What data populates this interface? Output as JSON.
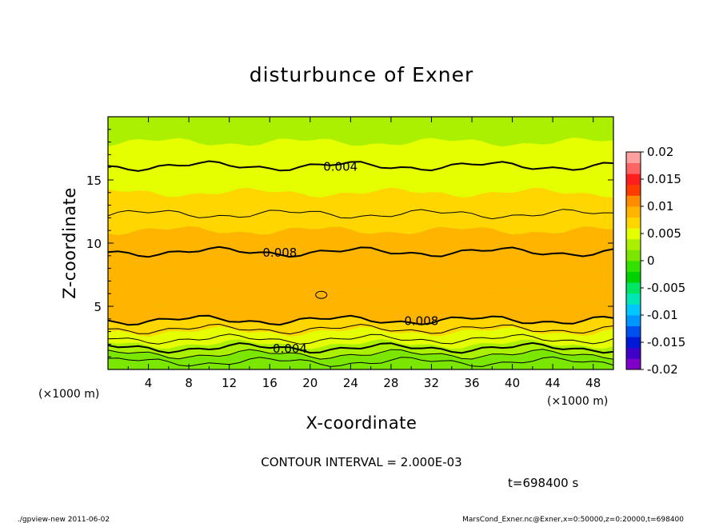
{
  "chart_data": {
    "type": "heatmap",
    "title": "disturbunce of Exner",
    "xlabel": "X-coordinate",
    "ylabel": "Z-coordinate",
    "x_unit_left": "(×1000 m)",
    "x_unit_right": "(×1000 m)",
    "x_ticks": [
      "4",
      "8",
      "12",
      "16",
      "20",
      "24",
      "28",
      "32",
      "36",
      "40",
      "44",
      "48"
    ],
    "y_ticks": [
      "5",
      "10",
      "15"
    ],
    "xlim": [
      0,
      50
    ],
    "ylim": [
      0,
      20
    ],
    "colorbar": {
      "ticks": [
        "0.02",
        "0.015",
        "0.01",
        "0.005",
        "0",
        "-0.005",
        "-0.01",
        "-0.015",
        "-0.02"
      ],
      "levels": [
        -0.02,
        0.02
      ],
      "colors": [
        "#7f00c8",
        "#3f00c8",
        "#0019d6",
        "#0050f0",
        "#0096ff",
        "#00c8ff",
        "#00e6b4",
        "#00e664",
        "#00d200",
        "#32e100",
        "#7be600",
        "#aaf000",
        "#e6ff00",
        "#ffd600",
        "#ffb400",
        "#ff8c00",
        "#ff3c00",
        "#ff1e1e",
        "#ff6464",
        "#ffa0a0"
      ]
    },
    "contour_interval": "CONTOUR INTERVAL = 2.000E-03",
    "contour_labels": [
      {
        "text": "0.004",
        "x": 23,
        "z": 16.1
      },
      {
        "text": "0.008",
        "x": 17,
        "z": 9.3
      },
      {
        "text": "0.008",
        "x": 31,
        "z": 3.9
      },
      {
        "text": "0.004",
        "x": 18,
        "z": 1.7
      }
    ],
    "bands": [
      {
        "z": 0.0,
        "value": 0.0001
      },
      {
        "z": 0.6,
        "value": 0.001
      },
      {
        "z": 1.2,
        "value": 0.0025
      },
      {
        "z": 2.0,
        "value": 0.004
      },
      {
        "z": 3.0,
        "value": 0.0065
      },
      {
        "z": 3.9,
        "value": 0.008
      },
      {
        "z": 5.0,
        "value": 0.0092
      },
      {
        "z": 6.5,
        "value": 0.0097
      },
      {
        "z": 8.2,
        "value": 0.0088
      },
      {
        "z": 9.3,
        "value": 0.008
      },
      {
        "z": 11.0,
        "value": 0.0068
      },
      {
        "z": 12.3,
        "value": 0.006
      },
      {
        "z": 14.0,
        "value": 0.005
      },
      {
        "z": 16.1,
        "value": 0.004
      },
      {
        "z": 18.0,
        "value": 0.0032
      },
      {
        "z": 20.0,
        "value": 0.0026
      }
    ],
    "time": "t=698400 s",
    "footer_left": "./gpview-new  2011-06-02",
    "footer_right": "MarsCond_Exner.nc@Exner,x=0:50000,z=0:20000,t=698400"
  }
}
